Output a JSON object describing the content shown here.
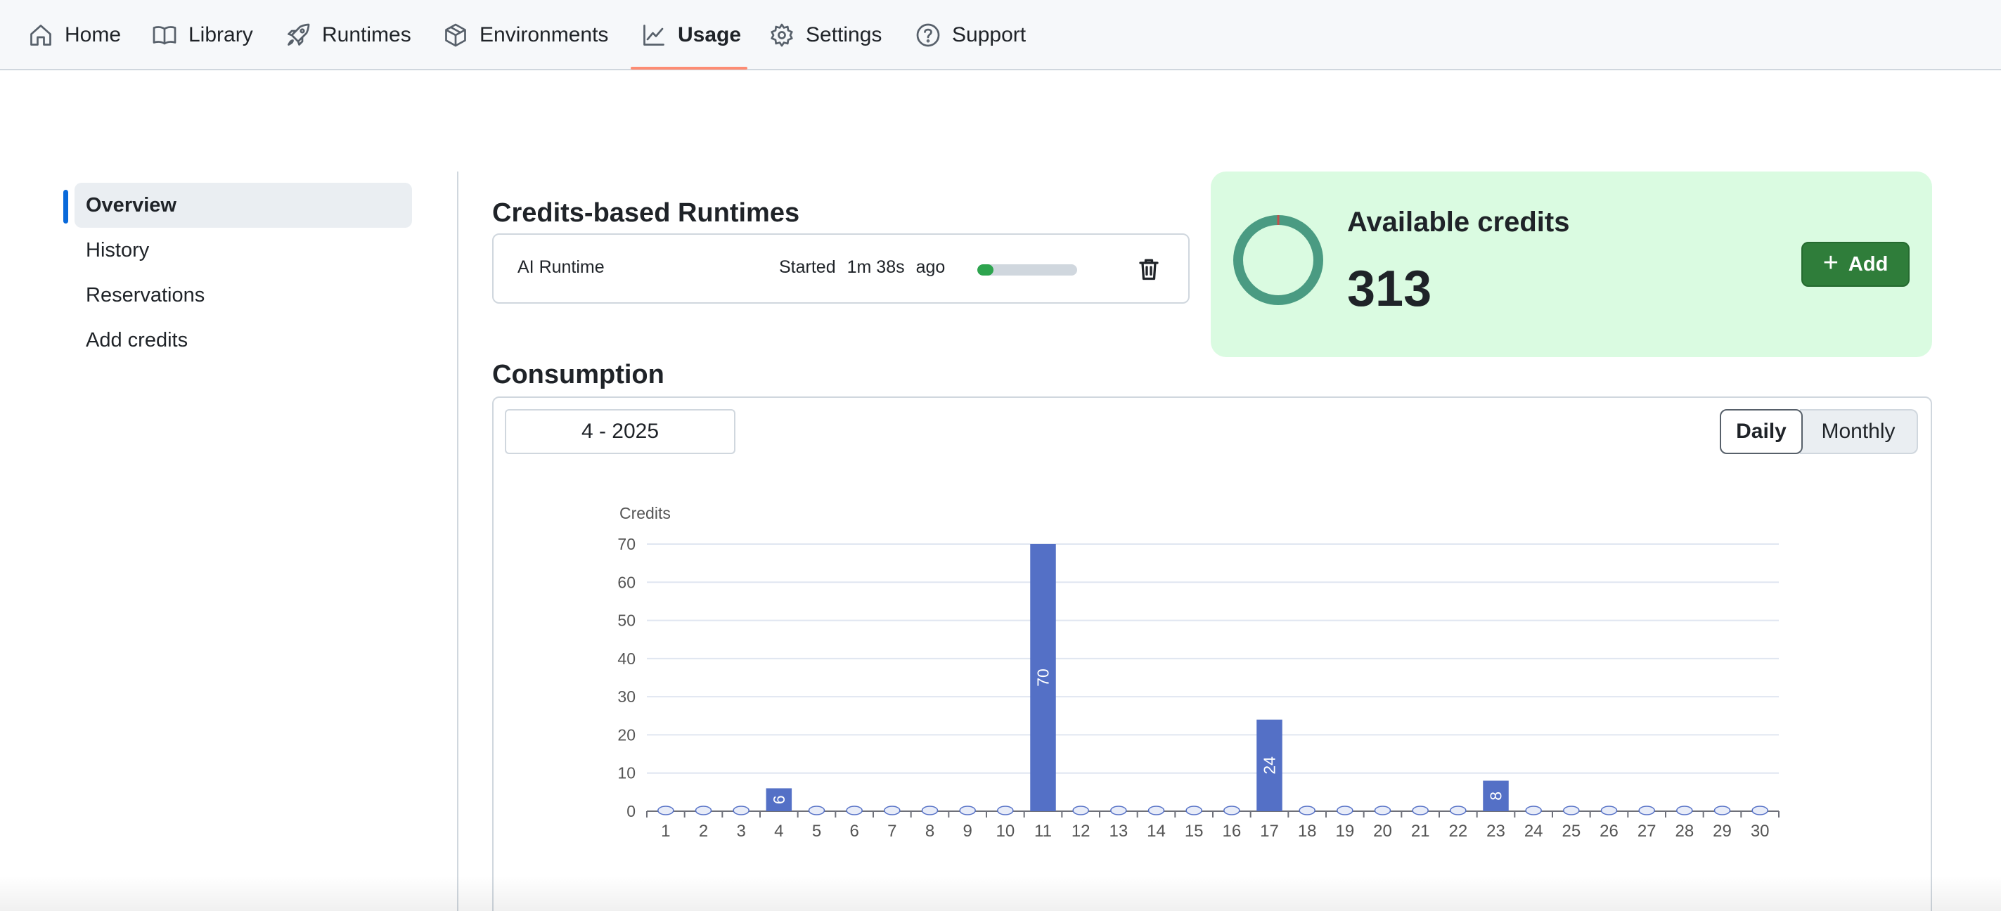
{
  "nav": {
    "items": [
      {
        "label": "Home",
        "icon": "home-icon"
      },
      {
        "label": "Library",
        "icon": "book-icon"
      },
      {
        "label": "Runtimes",
        "icon": "rocket-icon"
      },
      {
        "label": "Environments",
        "icon": "package-icon"
      },
      {
        "label": "Usage",
        "icon": "graph-icon",
        "active": true
      },
      {
        "label": "Settings",
        "icon": "gear-icon"
      },
      {
        "label": "Support",
        "icon": "question-icon"
      }
    ],
    "accent_color": "#fd8c73"
  },
  "sidebar": {
    "items": [
      {
        "label": "Overview",
        "active": true
      },
      {
        "label": "History"
      },
      {
        "label": "Reservations"
      },
      {
        "label": "Add credits"
      }
    ],
    "indicator_color": "#0969da"
  },
  "runtimes": {
    "title": "Credits-based Runtimes",
    "rows": [
      {
        "name": "AI Runtime",
        "started_label": "Started",
        "elapsed": "1m 38s",
        "ago_label": "ago",
        "progress": 0.16
      }
    ]
  },
  "credits": {
    "title": "Available credits",
    "value": "313",
    "add_label": "Add",
    "ring_color": "#4a9b82",
    "used_marker_color": "#c0504d"
  },
  "consumption": {
    "title": "Consumption",
    "period": "4 - 2025",
    "toggle": {
      "daily": "Daily",
      "monthly": "Monthly",
      "selected": "Daily"
    }
  },
  "chart_data": {
    "type": "bar",
    "ylabel": "Credits",
    "xlabel": "",
    "ylim": [
      0,
      70
    ],
    "yticks": [
      0,
      10,
      20,
      30,
      40,
      50,
      60,
      70
    ],
    "categories": [
      "1",
      "2",
      "3",
      "4",
      "5",
      "6",
      "7",
      "8",
      "9",
      "10",
      "11",
      "12",
      "13",
      "14",
      "15",
      "16",
      "17",
      "18",
      "19",
      "20",
      "21",
      "22",
      "23",
      "24",
      "25",
      "26",
      "27",
      "28",
      "29",
      "30"
    ],
    "values": [
      0,
      0,
      0,
      6,
      0,
      0,
      0,
      0,
      0,
      0,
      70,
      0,
      0,
      0,
      0,
      0,
      24,
      0,
      0,
      0,
      0,
      0,
      8,
      0,
      0,
      0,
      0,
      0,
      0,
      0
    ],
    "bar_color": "#5470c6",
    "grid": true
  }
}
